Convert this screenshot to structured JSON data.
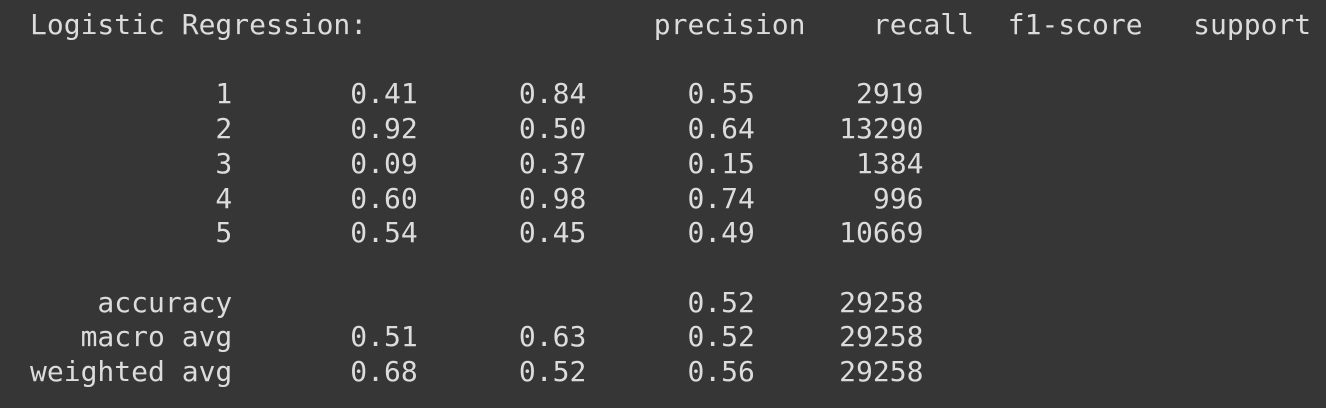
{
  "output": {
    "line_01": "Logistic Regression:                 precision    recall  f1-score   support",
    "line_02": "",
    "line_03": "           1       0.41      0.84      0.55      2919",
    "line_04": "           2       0.92      0.50      0.64     13290",
    "line_05": "           3       0.09      0.37      0.15      1384",
    "line_06": "           4       0.60      0.98      0.74       996",
    "line_07": "           5       0.54      0.45      0.49     10669",
    "line_08": "",
    "line_09": "    accuracy                           0.52     29258",
    "line_10": "   macro avg       0.51      0.63      0.52     29258",
    "line_11": "weighted avg       0.68      0.52      0.56     29258"
  },
  "colors": {
    "background": "#363636",
    "text": "#dcdcdc"
  }
}
